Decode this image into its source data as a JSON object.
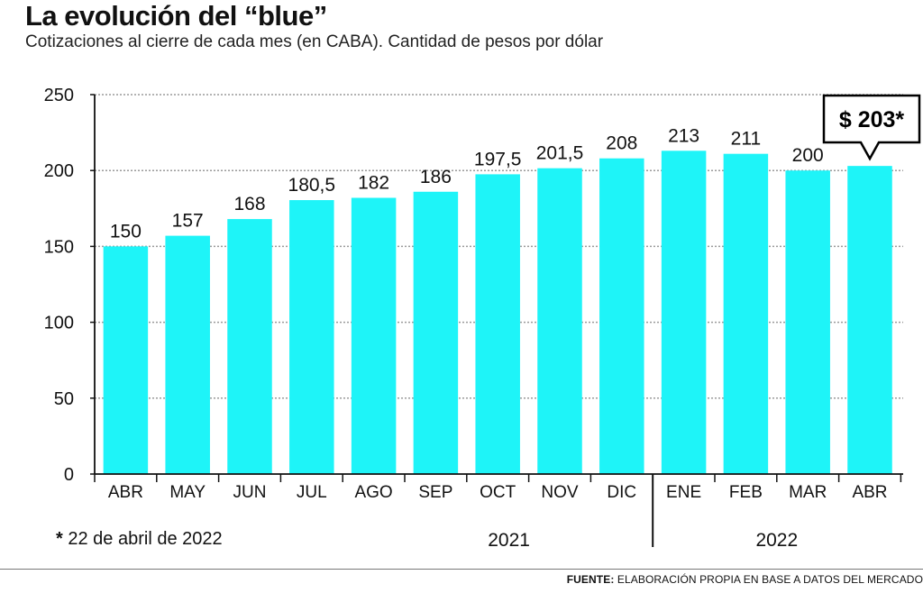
{
  "title": "La evolución del “blue”",
  "subtitle": "Cotizaciones al cierre de cada mes (en CABA). Cantidad de pesos por dólar",
  "chart_data": {
    "type": "bar",
    "title": "La evolución del “blue”",
    "subtitle": "Cotizaciones al cierre de cada mes (en CABA). Cantidad de pesos por dólar",
    "categories": [
      "ABR",
      "MAY",
      "JUN",
      "JUL",
      "AGO",
      "SEP",
      "OCT",
      "NOV",
      "DIC",
      "ENE",
      "FEB",
      "MAR",
      "ABR"
    ],
    "values": [
      150,
      157,
      168,
      180.5,
      182,
      186,
      197.5,
      201.5,
      208,
      213,
      211,
      200,
      203
    ],
    "value_labels": [
      "150",
      "157",
      "168",
      "180,5",
      "182",
      "186",
      "197,5",
      "201,5",
      "208",
      "213",
      "211",
      "200",
      ""
    ],
    "yticks": [
      0,
      50,
      100,
      150,
      200,
      250
    ],
    "ylim": [
      0,
      250
    ],
    "grid": true,
    "bar_color": "#1ef4f8",
    "years": [
      {
        "label": "2021",
        "from": 0,
        "to": 8
      },
      {
        "label": "2022",
        "from": 9,
        "to": 12
      }
    ],
    "callout": {
      "category_index": 12,
      "text": "$ 203*"
    }
  },
  "footnote": {
    "star": "*",
    "text": "22 de abril de 2022"
  },
  "source": {
    "label": "FUENTE:",
    "text": "ELABORACIÓN PROPIA EN BASE A DATOS DEL MERCADO"
  }
}
